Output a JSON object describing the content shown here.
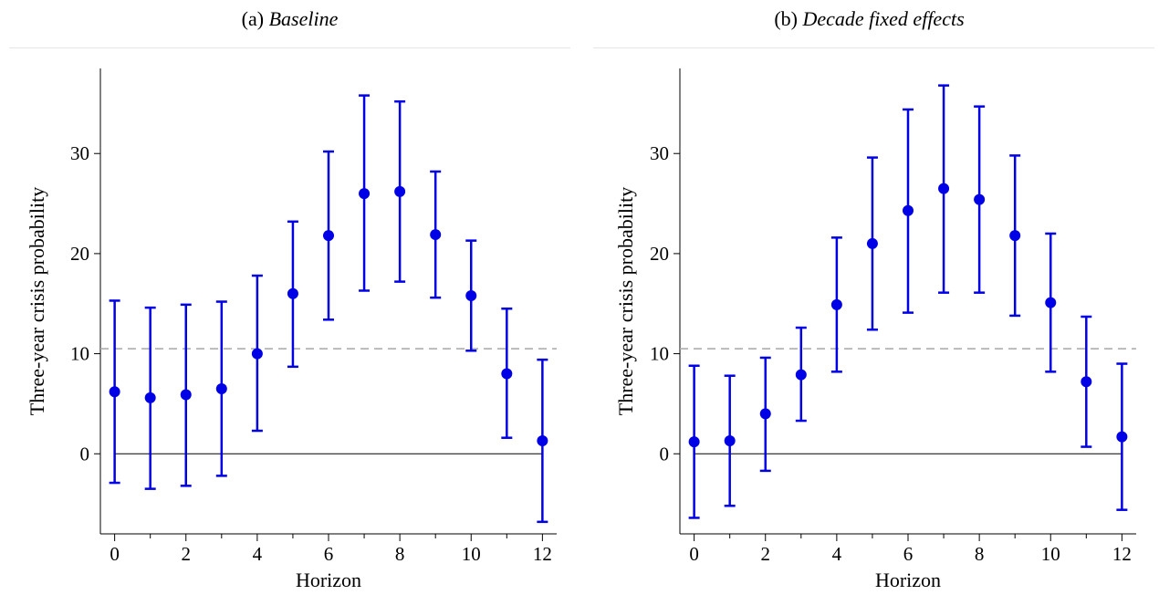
{
  "panels": [
    {
      "letter": "(a)",
      "subtitle": "Baseline"
    },
    {
      "letter": "(b)",
      "subtitle": "Decade fixed effects"
    }
  ],
  "colors": {
    "marker": "#0000e6",
    "reference_line": "#a6a6a6",
    "zero_line": "#000000"
  },
  "chart_data": [
    {
      "type": "scatter",
      "title": "(a) Baseline",
      "xlabel": "Horizon",
      "ylabel": "Three-year crisis probability",
      "xlim": [
        -0.4,
        12.4
      ],
      "ylim": [
        -8,
        38.5
      ],
      "xticks": [
        0,
        2,
        4,
        6,
        8,
        10,
        12
      ],
      "yticks": [
        0,
        10,
        20,
        30
      ],
      "reference_line": 10.5,
      "zero_line": 0,
      "grid": false,
      "series": [
        {
          "x": [
            0,
            1,
            2,
            3,
            4,
            5,
            6,
            7,
            8,
            9,
            10,
            11,
            12
          ],
          "values": [
            6.2,
            5.6,
            5.9,
            6.5,
            10.0,
            16.0,
            21.8,
            26.0,
            26.2,
            21.9,
            15.8,
            8.0,
            1.3
          ],
          "lower": [
            -2.9,
            -3.5,
            -3.2,
            -2.2,
            2.3,
            8.7,
            13.4,
            16.3,
            17.2,
            15.6,
            10.3,
            1.6,
            -6.8
          ],
          "upper": [
            15.3,
            14.6,
            14.9,
            15.2,
            17.8,
            23.2,
            30.2,
            35.8,
            35.2,
            28.2,
            21.3,
            14.5,
            9.4
          ]
        }
      ]
    },
    {
      "type": "scatter",
      "title": "(b) Decade fixed effects",
      "xlabel": "Horizon",
      "ylabel": "Three-year crisis probability",
      "xlim": [
        -0.4,
        12.4
      ],
      "ylim": [
        -8,
        38.5
      ],
      "xticks": [
        0,
        2,
        4,
        6,
        8,
        10,
        12
      ],
      "yticks": [
        0,
        10,
        20,
        30
      ],
      "reference_line": 10.5,
      "zero_line": 0,
      "grid": false,
      "series": [
        {
          "x": [
            0,
            1,
            2,
            3,
            4,
            5,
            6,
            7,
            8,
            9,
            10,
            11,
            12
          ],
          "values": [
            1.2,
            1.3,
            4.0,
            7.9,
            14.9,
            21.0,
            24.3,
            26.5,
            25.4,
            21.8,
            15.1,
            7.2,
            1.7
          ],
          "lower": [
            -6.4,
            -5.2,
            -1.7,
            3.3,
            8.2,
            12.4,
            14.1,
            16.1,
            16.1,
            13.8,
            8.2,
            0.7,
            -5.6
          ],
          "upper": [
            8.8,
            7.8,
            9.6,
            12.6,
            21.6,
            29.6,
            34.4,
            36.8,
            34.7,
            29.8,
            22.0,
            13.7,
            9.0
          ]
        }
      ]
    }
  ]
}
